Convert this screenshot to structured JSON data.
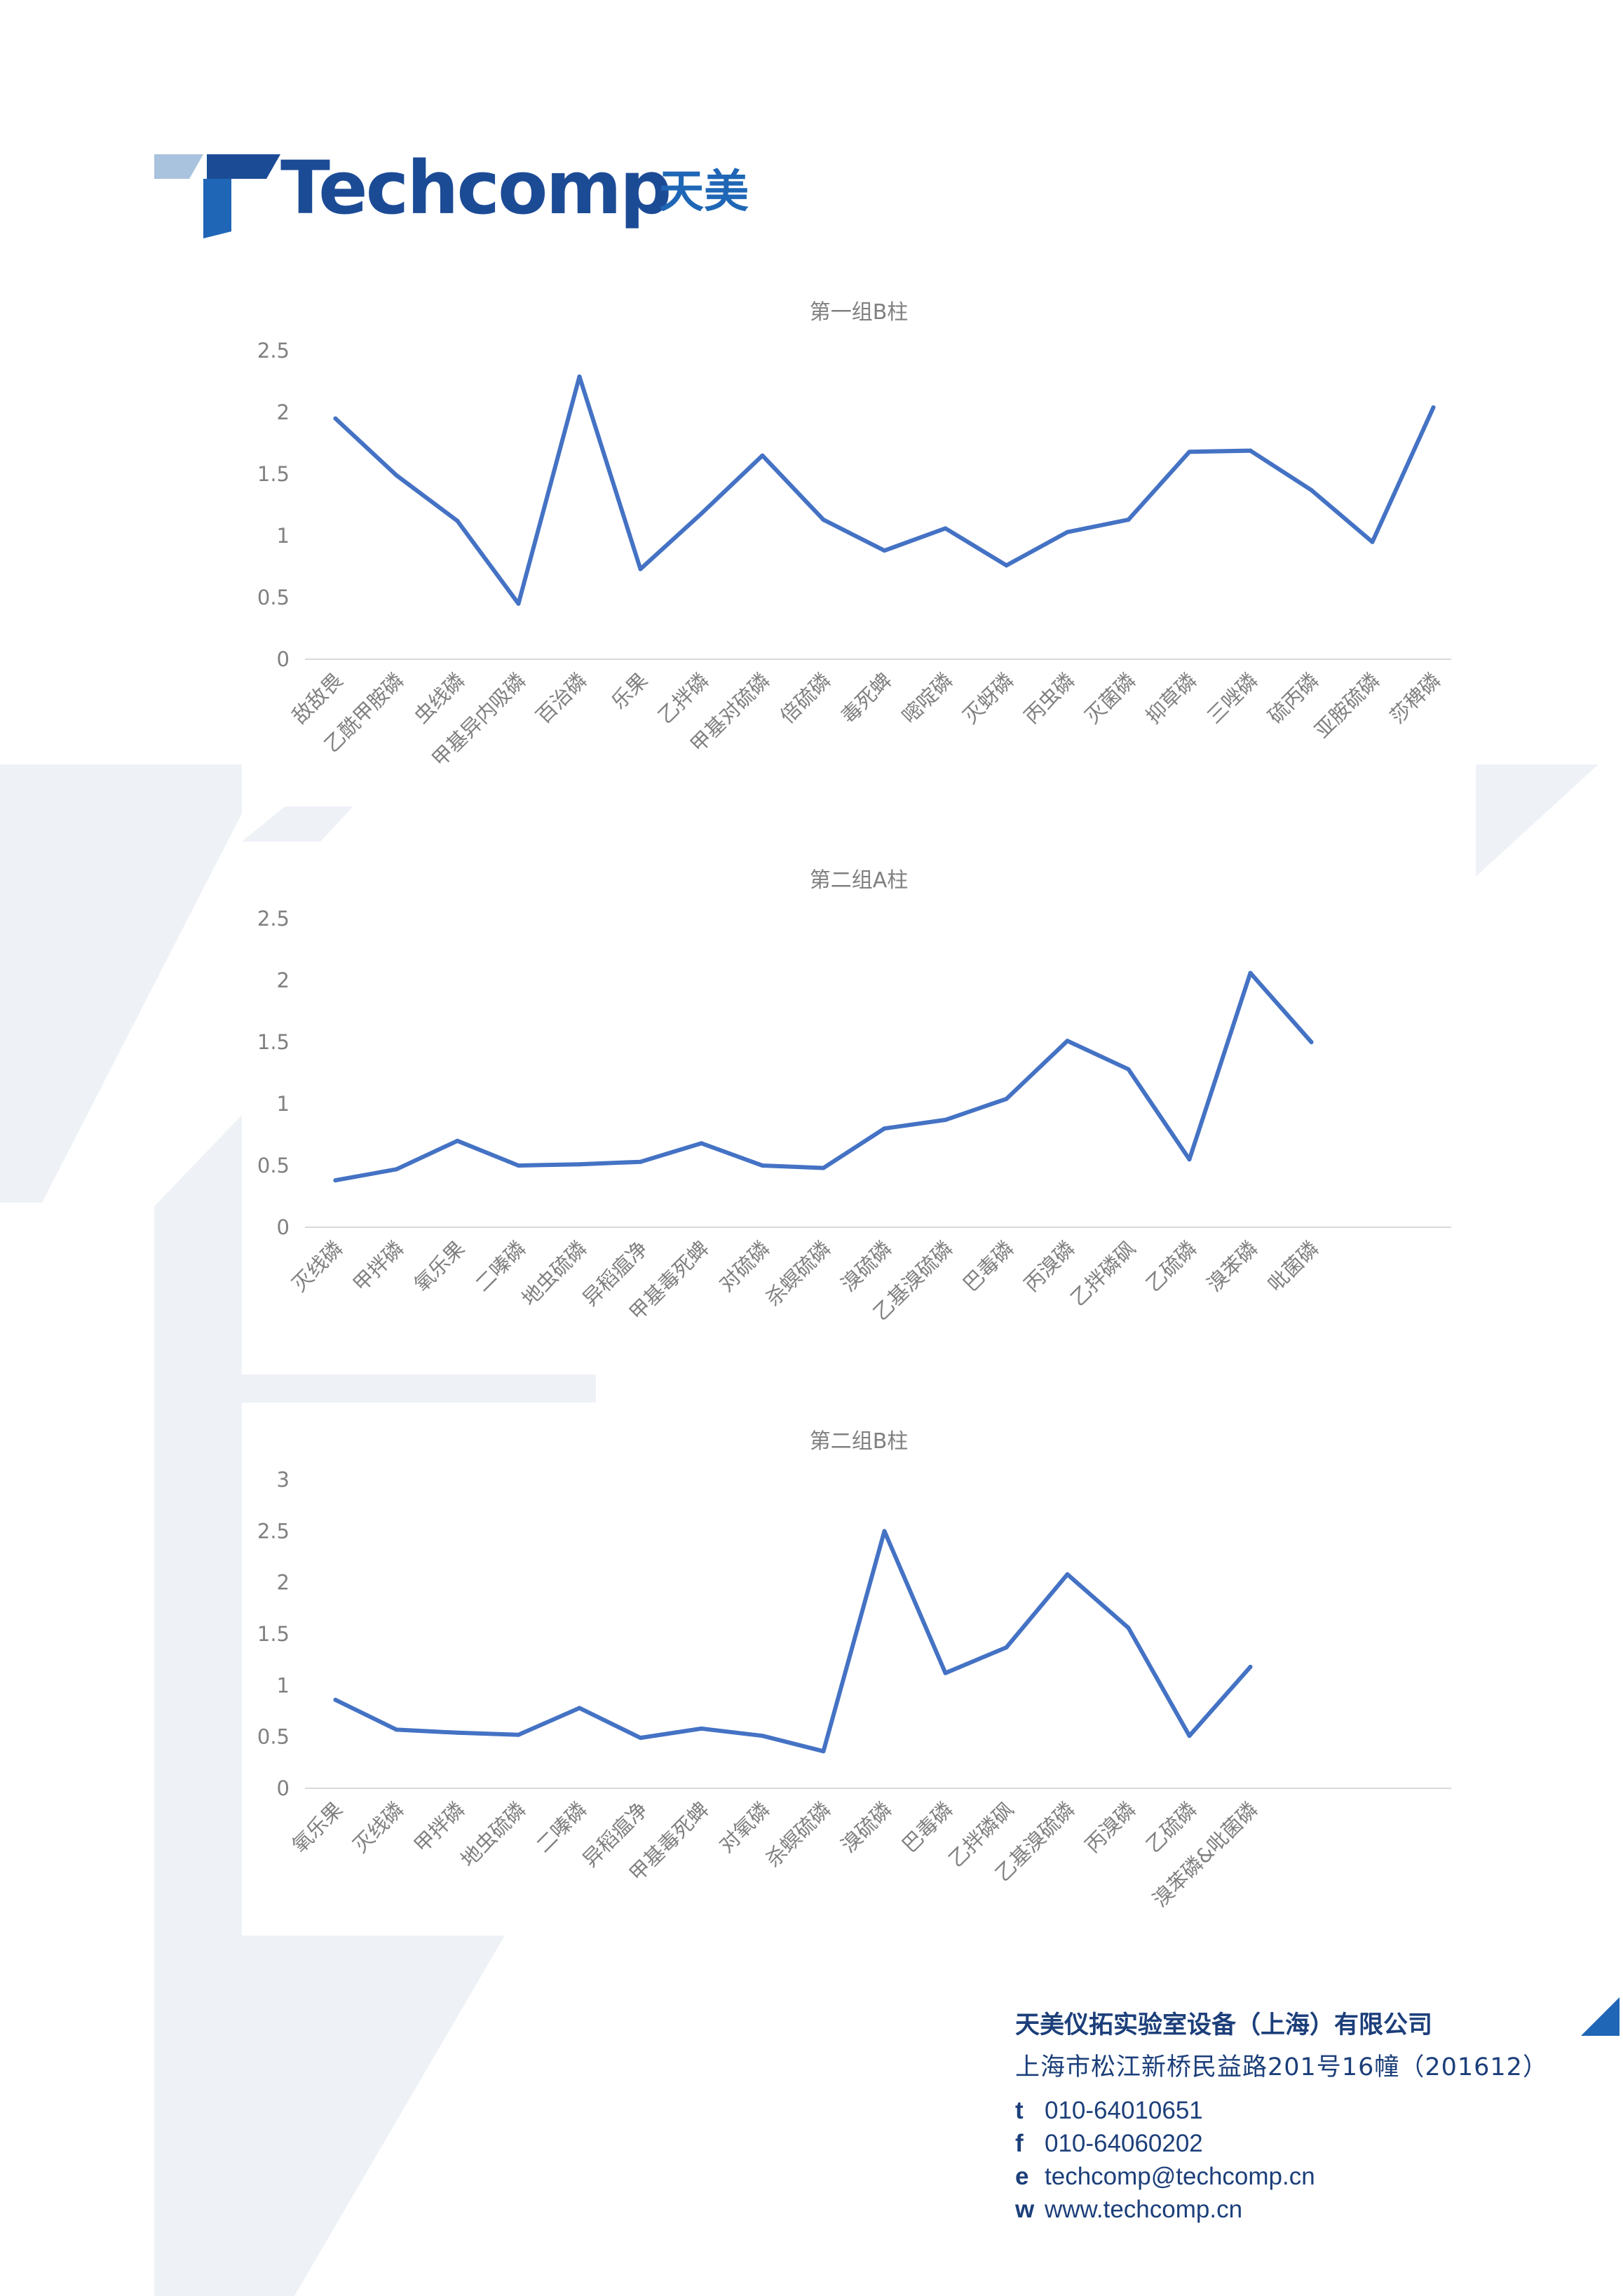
{
  "brand": {
    "name": "Techcomp",
    "chinese": "天美",
    "colors": {
      "primary": "#1c4b96",
      "accent": "#1f66b6",
      "light": "#a9c2dd",
      "line": "#4472c4",
      "watermark": "#eef2f7"
    }
  },
  "chart_data": [
    {
      "type": "line",
      "title": "第一组B柱",
      "ylim": [
        0,
        2.5
      ],
      "yticks": [
        "0",
        "0.5",
        "1",
        "1.5",
        "2",
        "2.5"
      ],
      "categories": [
        "敌敌畏",
        "乙酰甲胺磷",
        "虫线磷",
        "甲基异内吸磷",
        "百治磷",
        "乐果",
        "乙拌磷",
        "甲基对硫磷",
        "倍硫磷",
        "毒死蜱",
        "嘧啶磷",
        "灭蚜磷",
        "丙虫磷",
        "灭菌磷",
        "抑草磷",
        "三唑磷",
        "硫丙磷",
        "亚胺硫磷",
        "莎稗磷"
      ],
      "series": [
        {
          "values": [
            1.95,
            1.49,
            1.12,
            0.45,
            2.29,
            0.73,
            1.18,
            1.65,
            1.13,
            0.88,
            1.06,
            0.76,
            1.03,
            1.13,
            1.68,
            1.69,
            1.37,
            0.95,
            2.04
          ]
        }
      ],
      "grid": false,
      "legend": "none"
    },
    {
      "type": "line",
      "title": "第二组A柱",
      "ylim": [
        0,
        2.5
      ],
      "yticks": [
        "0",
        "0.5",
        "1",
        "1.5",
        "2",
        "2.5"
      ],
      "categories": [
        "灭线磷",
        "甲拌磷",
        "氧乐果",
        "二嗪磷",
        "地虫硫磷",
        "异稻瘟净",
        "甲基毒死蜱",
        "对硫磷",
        "杀螟硫磷",
        "溴硫磷",
        "乙基溴硫磷",
        "巴毒磷",
        "丙溴磷",
        "乙拌磷砜",
        "乙硫磷",
        "溴苯磷",
        "吡菌磷"
      ],
      "series": [
        {
          "values": [
            0.38,
            0.47,
            0.7,
            0.5,
            0.51,
            0.53,
            0.68,
            0.5,
            0.48,
            0.8,
            0.87,
            1.04,
            1.51,
            1.28,
            0.55,
            2.06,
            1.5
          ]
        }
      ],
      "grid": false,
      "legend": "none"
    },
    {
      "type": "line",
      "title": "第二组B柱",
      "ylim": [
        0,
        3
      ],
      "yticks": [
        "0",
        "0.5",
        "1",
        "1.5",
        "2",
        "2.5",
        "3"
      ],
      "categories": [
        "氧乐果",
        "灭线磷",
        "甲拌磷",
        "地虫硫磷",
        "二嗪磷",
        "异稻瘟净",
        "甲基毒死蜱",
        "对氧磷",
        "杀螟硫磷",
        "溴硫磷",
        "巴毒磷",
        "乙拌磷砜",
        "乙基溴硫磷",
        "丙溴磷",
        "乙硫磷",
        "溴苯磷&吡菌磷"
      ],
      "series": [
        {
          "values": [
            0.86,
            0.57,
            0.54,
            0.52,
            0.78,
            0.49,
            0.58,
            0.51,
            0.36,
            2.5,
            1.12,
            1.37,
            2.08,
            1.56,
            0.51,
            1.18
          ]
        }
      ],
      "grid": false,
      "legend": "none"
    }
  ],
  "footer": {
    "company": "天美仪拓实验室设备（上海）有限公司",
    "address": "上海市松江新桥民益路201号16幢（201612）",
    "contacts": [
      {
        "key": "t",
        "value": "010-64010651"
      },
      {
        "key": "f",
        "value": "010-64060202"
      },
      {
        "key": "e",
        "value": "techcomp@techcomp.cn"
      },
      {
        "key": "w",
        "value": "www.techcomp.cn"
      }
    ]
  }
}
